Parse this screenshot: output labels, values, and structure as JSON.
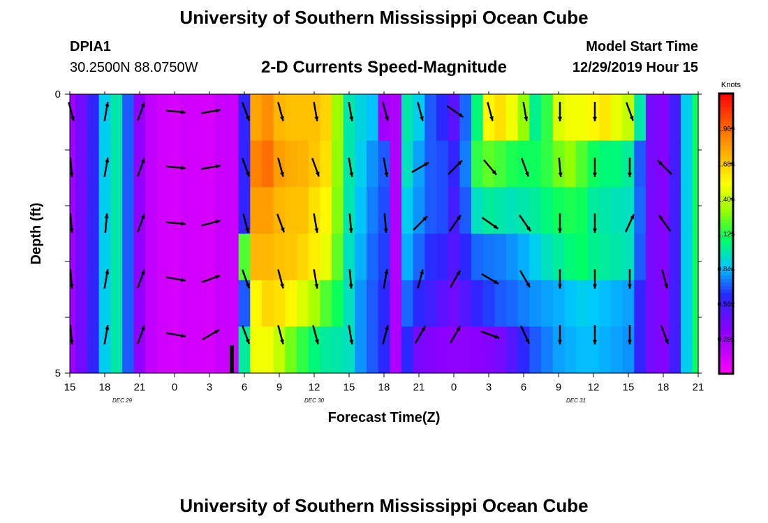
{
  "header": {
    "title": "University of Southern Mississippi Ocean Cube",
    "station_id": "DPIA1",
    "station_coords": "30.2500N 88.0750W",
    "plot_title": "2-D Currents Speed-Magnitude",
    "model_start_label": "Model Start Time",
    "model_start_value": "12/29/2019 Hour 15"
  },
  "footer": {
    "title": "University of Southern Mississippi Ocean Cube"
  },
  "chart_data": {
    "type": "heatmap",
    "title": "2-D Currents Speed-Magnitude",
    "xlabel": "Forecast Time(Z)",
    "ylabel": "Depth (ft)",
    "x_range_hours": [
      0,
      54
    ],
    "x_tick_labels": [
      "15",
      "18",
      "21",
      "0",
      "3",
      "6",
      "9",
      "12",
      "15",
      "18",
      "21",
      "0",
      "3",
      "6",
      "9",
      "12",
      "15",
      "18",
      "21"
    ],
    "date_labels": [
      {
        "text": "DEC 29",
        "at_hour": 4.5
      },
      {
        "text": "DEC 30",
        "at_hour": 21
      },
      {
        "text": "DEC 31",
        "at_hour": 43.5
      }
    ],
    "y_range": [
      0,
      5
    ],
    "y_tick_labels": [
      "0",
      "5"
    ],
    "colorbar": {
      "unit": "Knots",
      "min": 0,
      "max": 2.25,
      "tick_labels": [
        "1.969",
        "1.688",
        "1.406",
        "1.125",
        "0.844",
        "0.562",
        "0.281"
      ],
      "tick_values": [
        1.969,
        1.688,
        1.406,
        1.125,
        0.844,
        0.562,
        0.281
      ]
    },
    "column_hours": [
      0,
      1,
      2,
      3,
      4,
      5,
      6,
      7,
      8,
      9,
      10,
      11,
      12,
      13,
      14,
      15,
      16,
      17,
      18,
      19,
      20,
      21,
      22,
      23,
      24,
      25,
      26,
      27,
      28,
      29,
      30,
      31,
      32,
      33,
      34,
      35,
      36,
      37,
      38,
      39,
      40,
      41,
      42,
      43,
      44,
      45,
      46,
      47,
      48,
      49,
      50,
      51,
      52,
      53,
      54
    ],
    "speed_grid_knots": [
      [
        0.28,
        0.42,
        0.6,
        0.88,
        0.98,
        0.7,
        0.32,
        0.18,
        0.14,
        0.12,
        0.14,
        0.13,
        0.12,
        0.16,
        0.15,
        0.6,
        1.8,
        1.87,
        1.75,
        1.72,
        1.72,
        1.72,
        1.66,
        1.32,
        0.98,
        0.9,
        0.85,
        0.28,
        0.24,
        0.98,
        0.88,
        0.7,
        0.62,
        0.48,
        0.72,
        1.05,
        1.55,
        1.62,
        1.5,
        1.3,
        1.02,
        1.15,
        1.45,
        1.5,
        1.5,
        1.55,
        1.6,
        1.48,
        1.4,
        0.98,
        0.4,
        0.36,
        0.55,
        0.88,
        1.1
      ],
      [
        0.28,
        0.42,
        0.6,
        0.88,
        0.98,
        0.7,
        0.32,
        0.18,
        0.14,
        0.12,
        0.14,
        0.13,
        0.12,
        0.16,
        0.15,
        0.6,
        1.9,
        1.95,
        1.82,
        1.78,
        1.76,
        1.7,
        1.62,
        1.3,
        0.98,
        0.88,
        0.78,
        0.7,
        0.24,
        0.95,
        0.8,
        0.7,
        0.68,
        0.6,
        0.75,
        1.15,
        1.22,
        1.18,
        1.12,
        1.1,
        1.1,
        1.15,
        1.25,
        1.3,
        1.2,
        1.1,
        1.05,
        1.05,
        1.0,
        0.7,
        0.4,
        0.36,
        0.55,
        0.88,
        1.1
      ],
      [
        0.28,
        0.42,
        0.6,
        0.88,
        0.98,
        0.7,
        0.32,
        0.18,
        0.14,
        0.12,
        0.14,
        0.13,
        0.12,
        0.16,
        0.15,
        0.6,
        1.82,
        1.82,
        1.75,
        1.72,
        1.72,
        1.62,
        1.55,
        1.28,
        0.98,
        0.85,
        0.75,
        0.68,
        0.24,
        0.88,
        0.78,
        0.7,
        0.68,
        0.55,
        0.7,
        0.95,
        1.0,
        0.98,
        0.96,
        0.98,
        1.0,
        1.05,
        1.1,
        1.12,
        1.1,
        1.0,
        0.98,
        0.96,
        0.95,
        0.72,
        0.4,
        0.36,
        0.55,
        0.88,
        1.1
      ],
      [
        0.28,
        0.42,
        0.6,
        0.88,
        0.98,
        0.7,
        0.32,
        0.18,
        0.14,
        0.12,
        0.14,
        0.13,
        0.12,
        0.16,
        0.15,
        1.2,
        1.75,
        1.75,
        1.72,
        1.7,
        1.65,
        1.58,
        1.48,
        1.22,
        0.95,
        0.82,
        0.72,
        0.66,
        0.24,
        0.82,
        0.72,
        0.64,
        0.6,
        0.5,
        0.62,
        0.72,
        0.74,
        0.75,
        0.78,
        0.82,
        0.88,
        0.95,
        1.0,
        1.05,
        1.08,
        1.02,
        1.0,
        0.98,
        0.96,
        0.7,
        0.4,
        0.36,
        0.55,
        0.88,
        1.1
      ],
      [
        0.28,
        0.42,
        0.6,
        0.88,
        0.98,
        0.7,
        0.32,
        0.18,
        0.14,
        0.12,
        0.14,
        0.13,
        0.12,
        0.16,
        0.15,
        0.7,
        1.55,
        1.65,
        1.62,
        1.55,
        1.45,
        1.35,
        1.2,
        1.1,
        0.95,
        0.78,
        0.7,
        0.62,
        0.24,
        0.72,
        0.62,
        0.56,
        0.48,
        0.42,
        0.5,
        0.6,
        0.66,
        0.7,
        0.72,
        0.75,
        0.78,
        0.8,
        0.82,
        0.85,
        0.88,
        0.86,
        0.84,
        0.82,
        0.8,
        0.6,
        0.4,
        0.36,
        0.55,
        0.88,
        1.1
      ],
      [
        0.28,
        0.42,
        0.6,
        0.88,
        0.98,
        0.7,
        0.32,
        0.18,
        0.14,
        0.12,
        0.14,
        0.13,
        0.12,
        0.16,
        0.15,
        1.0,
        1.5,
        1.5,
        1.4,
        1.25,
        1.15,
        1.05,
        1.0,
        0.98,
        0.95,
        0.78,
        0.7,
        0.62,
        0.24,
        0.62,
        0.4,
        0.36,
        0.34,
        0.33,
        0.33,
        0.34,
        0.36,
        0.4,
        0.5,
        0.62,
        0.7,
        0.75,
        0.8,
        0.82,
        0.84,
        0.84,
        0.82,
        0.8,
        0.78,
        0.6,
        0.4,
        0.36,
        0.55,
        0.88,
        1.1
      ]
    ],
    "vector_directions_deg_from_north": {
      "depth_0": [
        165,
        null,
        null,
        null,
        null,
        95,
        null,
        170,
        170,
        165,
        165,
        null,
        null,
        165,
        null,
        null,
        null,
        null,
        125,
        null,
        140,
        null,
        null,
        160,
        null,
        180,
        180,
        null,
        160
      ],
      "depth_1": [
        175,
        10,
        15,
        95,
        80,
        165,
        165,
        160,
        170,
        null,
        null,
        60,
        45,
        140,
        160,
        175,
        180,
        315,
        null,
        null,
        null,
        null,
        null,
        null,
        null,
        null,
        null,
        null,
        null
      ],
      "depth_2": [
        175,
        5,
        20,
        95,
        75,
        165,
        160,
        170,
        175,
        45,
        35,
        125,
        145,
        180,
        180,
        25,
        325,
        null,
        null,
        null,
        null,
        null,
        null,
        null,
        null,
        null,
        null,
        null,
        null
      ]
    }
  }
}
